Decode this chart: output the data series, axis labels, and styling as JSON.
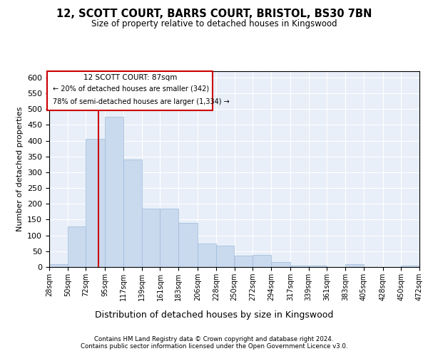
{
  "title_line1": "12, SCOTT COURT, BARRS COURT, BRISTOL, BS30 7BN",
  "title_line2": "Size of property relative to detached houses in Kingswood",
  "xlabel": "Distribution of detached houses by size in Kingswood",
  "ylabel": "Number of detached properties",
  "footer_line1": "Contains HM Land Registry data © Crown copyright and database right 2024.",
  "footer_line2": "Contains public sector information licensed under the Open Government Licence v3.0.",
  "annotation_line1": "12 SCOTT COURT: 87sqm",
  "annotation_line2": "← 20% of detached houses are smaller (342)",
  "annotation_line3": "78% of semi-detached houses are larger (1,334) →",
  "bar_color": "#c9d9ee",
  "bar_edge_color": "#9dbcd9",
  "background_color": "#e8eff8",
  "red_line_color": "#cc0000",
  "annotation_box_color": "#cc0000",
  "bin_edges": [
    28,
    50,
    72,
    95,
    117,
    139,
    161,
    183,
    206,
    228,
    250,
    272,
    294,
    317,
    339,
    361,
    383,
    405,
    428,
    450,
    472
  ],
  "bar_heights": [
    8,
    128,
    405,
    475,
    340,
    185,
    185,
    140,
    75,
    68,
    35,
    38,
    15,
    5,
    5,
    0,
    8,
    0,
    0,
    5
  ],
  "property_size": 87,
  "ylim": [
    0,
    620
  ],
  "yticks": [
    0,
    50,
    100,
    150,
    200,
    250,
    300,
    350,
    400,
    450,
    500,
    550,
    600
  ]
}
